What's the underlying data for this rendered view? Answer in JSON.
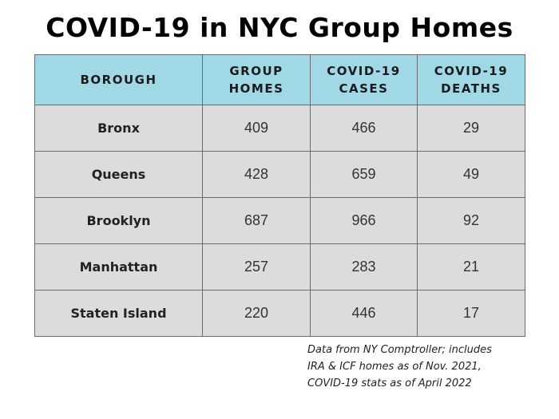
{
  "title": "COVID-19 in NYC Group Homes",
  "table": {
    "headers": {
      "borough": "BOROUGH",
      "group_homes": [
        "GROUP",
        "HOMES"
      ],
      "cases": [
        "COVID-19",
        "CASES"
      ],
      "deaths": [
        "COVID-19",
        "DEATHS"
      ]
    },
    "rows": [
      {
        "borough": "Bronx",
        "group_homes": "409",
        "cases": "466",
        "deaths": "29"
      },
      {
        "borough": "Queens",
        "group_homes": "428",
        "cases": "659",
        "deaths": "49"
      },
      {
        "borough": "Brooklyn",
        "group_homes": "687",
        "cases": "966",
        "deaths": "92"
      },
      {
        "borough": "Manhattan",
        "group_homes": "257",
        "cases": "283",
        "deaths": "21"
      },
      {
        "borough": "Staten Island",
        "group_homes": "220",
        "cases": "446",
        "deaths": "17"
      }
    ]
  },
  "source_note": {
    "line1": "Data from NY Comptroller; includes",
    "line2": "IRA & ICF homes as of Nov. 2021,",
    "line3": "COVID-19 stats as of April 2022"
  },
  "colors": {
    "header_background": "#a1d8e6",
    "row_background": "#dcdcdc",
    "border": "#6b6b6b"
  }
}
